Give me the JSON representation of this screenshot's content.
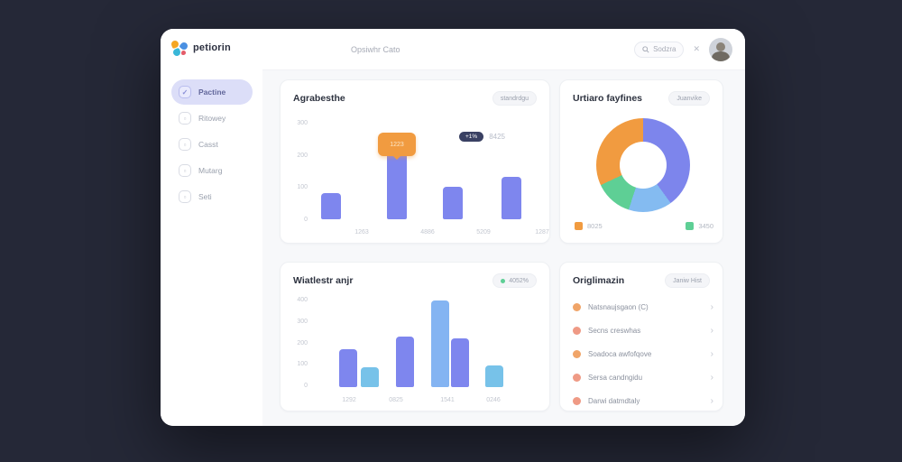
{
  "logo": {
    "text": "petiorin"
  },
  "header": {
    "title": "Opsiwhr Cato",
    "search_text": "Sodzra",
    "close_glyph": "✕"
  },
  "sidebar": {
    "items": [
      {
        "label": "Pactine",
        "active": true
      },
      {
        "label": "Ritowey",
        "active": false
      },
      {
        "label": "Casst",
        "active": false
      },
      {
        "label": "Mutarg",
        "active": false
      },
      {
        "label": "Seti",
        "active": false
      }
    ]
  },
  "icons": {
    "search": "magnifier-icon",
    "chevron_right": "›",
    "nav_bullet": "▫"
  },
  "colors": {
    "background": "#252837",
    "bar_purple": "#7e86ee",
    "bar_blue_light": "#77c2e9",
    "bar_blue": "#84b4f2",
    "accent_orange": "#f19b40",
    "accent_green": "#5ecf95",
    "active_nav_bg": "#dcdef8",
    "legend_navy": "#3a4163"
  },
  "cards": {
    "activity": {
      "title": "Agrabesthe",
      "badge": "standrdgu"
    },
    "donut": {
      "title": "Urtiaro fayfines",
      "badge": "Juanvike"
    },
    "trend": {
      "title": "Wiatlestr anjr",
      "badge": "4052%"
    },
    "list": {
      "title": "Origlimazin",
      "badge": "Janiw Hist",
      "items": [
        {
          "label": "Natsnaujsgaon (C)"
        },
        {
          "label": "Secns creswhas"
        },
        {
          "label": "Soadoca awfofqove"
        },
        {
          "label": "Sersa candngidu"
        },
        {
          "label": "Darwi datmdtaly"
        }
      ]
    }
  },
  "chart_data": [
    {
      "type": "bar",
      "title": "Agrabesthe",
      "categories": [
        "1263",
        "4886",
        "5209",
        "1287"
      ],
      "values": [
        80,
        205,
        100,
        130
      ],
      "ylim": [
        0,
        300
      ],
      "yticks": [
        "300",
        "200",
        "100",
        "0"
      ],
      "bar_color": "#7e86ee",
      "tooltip": {
        "bar_index": 1,
        "label": "1223"
      },
      "legend": {
        "pill": "+1%",
        "value": "8425"
      },
      "xlabel": "",
      "ylabel": ""
    },
    {
      "type": "pie",
      "title": "Urtiaro fayfines",
      "donut": true,
      "segments": [
        {
          "name": "indigo",
          "value": 40,
          "color": "#7d85ec"
        },
        {
          "name": "light-blue",
          "value": 15,
          "color": "#84bbf1"
        },
        {
          "name": "green",
          "value": 13,
          "color": "#5ecf95"
        },
        {
          "name": "orange",
          "value": 32,
          "color": "#f19b40"
        }
      ],
      "legend": [
        {
          "label": "8025",
          "color": "#f19b40"
        },
        {
          "label": "3450",
          "color": "#5ecf95"
        }
      ],
      "legend_position": "bottom"
    },
    {
      "type": "bar",
      "title": "Wiatlestr anjr",
      "categories": [
        "1292",
        "0825",
        "1541",
        "0246"
      ],
      "ylim": [
        0,
        400
      ],
      "yticks": [
        "400",
        "300",
        "200",
        "100",
        "0"
      ],
      "bars": [
        {
          "value": 170,
          "color": "#8187ef"
        },
        {
          "value": 90,
          "color": "#77c2e9"
        },
        {
          "value": 230,
          "color": "#8187ef"
        },
        {
          "value": 390,
          "color": "#84b4f2"
        },
        {
          "value": 220,
          "color": "#8187ef"
        },
        {
          "value": 100,
          "color": "#77c2e9"
        }
      ],
      "xlabel": "",
      "ylabel": ""
    }
  ]
}
